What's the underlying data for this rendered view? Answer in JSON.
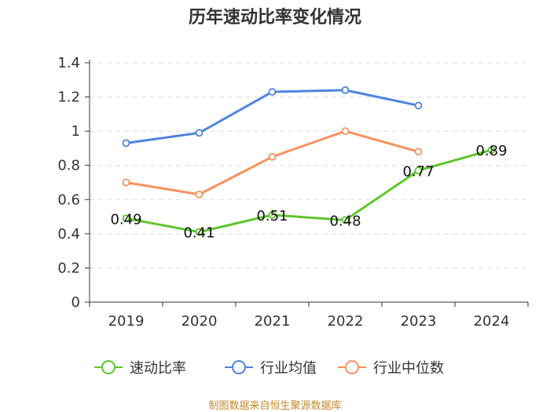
{
  "chart_data": {
    "type": "line",
    "title": "历年速动比率变化情况",
    "categories": [
      "2019",
      "2020",
      "2021",
      "2022",
      "2023",
      "2024"
    ],
    "ylim": [
      0,
      1.4
    ],
    "yticks": [
      0,
      0.2,
      0.4,
      0.6,
      0.8,
      1,
      1.2,
      1.4
    ],
    "ytick_labels": [
      "0",
      "0.2",
      "0.4",
      "0.6",
      "0.8",
      "1",
      "1.2",
      "1.4"
    ],
    "grid": true,
    "legend_position": "bottom-center",
    "series": [
      {
        "name": "速动比率",
        "color": "#5fc52e",
        "values": [
          0.49,
          0.41,
          0.51,
          0.48,
          0.77,
          0.89
        ],
        "labels": [
          "0.49",
          "0.41",
          "0.51",
          "0.48",
          "0.77",
          "0.89"
        ]
      },
      {
        "name": "行业均值",
        "color": "#4e84e0",
        "values": [
          0.93,
          0.99,
          1.23,
          1.24,
          1.15,
          null
        ]
      },
      {
        "name": "行业中位数",
        "color": "#f7925e",
        "values": [
          0.7,
          0.63,
          0.85,
          1.0,
          0.88,
          null
        ]
      }
    ]
  },
  "source_text": "制图数据来自恒生聚源数据库"
}
